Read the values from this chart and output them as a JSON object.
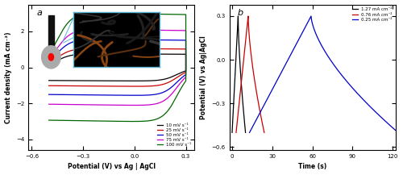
{
  "panel_a": {
    "label": "a",
    "xlabel": "Potential (V) vs Ag | AgCl",
    "ylabel": "Current density (mA cm⁻²)",
    "xlim": [
      -0.62,
      0.35
    ],
    "ylim": [
      -4.6,
      3.5
    ],
    "xticks": [
      -0.6,
      -0.3,
      0.0,
      0.3
    ],
    "yticks": [
      -4,
      -2,
      0,
      2
    ],
    "v_min": -0.5,
    "v_max": 0.3,
    "cv_curves": [
      {
        "label": "10 mV s⁻¹",
        "color": "#000000",
        "amp": 0.75,
        "tilt": 0.1
      },
      {
        "label": "25 mV s⁻¹",
        "color": "#cc0000",
        "amp": 1.05,
        "tilt": 0.15
      },
      {
        "label": "50 mV s⁻¹",
        "color": "#0000cc",
        "amp": 1.55,
        "tilt": 0.2
      },
      {
        "label": "75 mV s⁻¹",
        "color": "#cc00cc",
        "amp": 2.1,
        "tilt": 0.25
      },
      {
        "label": "100 mV s⁻¹",
        "color": "#006600",
        "amp": 3.0,
        "tilt": 0.3
      }
    ]
  },
  "panel_b": {
    "label": "b",
    "xlabel": "Time (s)",
    "ylabel": "Potential (V) vs Ag|AgCl",
    "xlim": [
      -2,
      122
    ],
    "ylim": [
      -0.62,
      0.38
    ],
    "yticks": [
      -0.6,
      -0.3,
      0.0,
      0.3
    ],
    "xticks": [
      0,
      30,
      60,
      90,
      120
    ],
    "v_min": -0.5,
    "v_max": 0.3,
    "gcd_curves": [
      {
        "label": "1.27 mA cm⁻²",
        "color": "#000000",
        "t_start": 0,
        "t_charge": 4.5,
        "t_discharge": 5.5
      },
      {
        "label": "0.76 mA cm⁻²",
        "color": "#cc0000",
        "t_start": 3,
        "t_charge": 9,
        "t_discharge": 12
      },
      {
        "label": "0.25 mA cm⁻²",
        "color": "#0000cc",
        "t_start": 13,
        "t_charge": 46,
        "t_discharge": 65
      }
    ]
  }
}
